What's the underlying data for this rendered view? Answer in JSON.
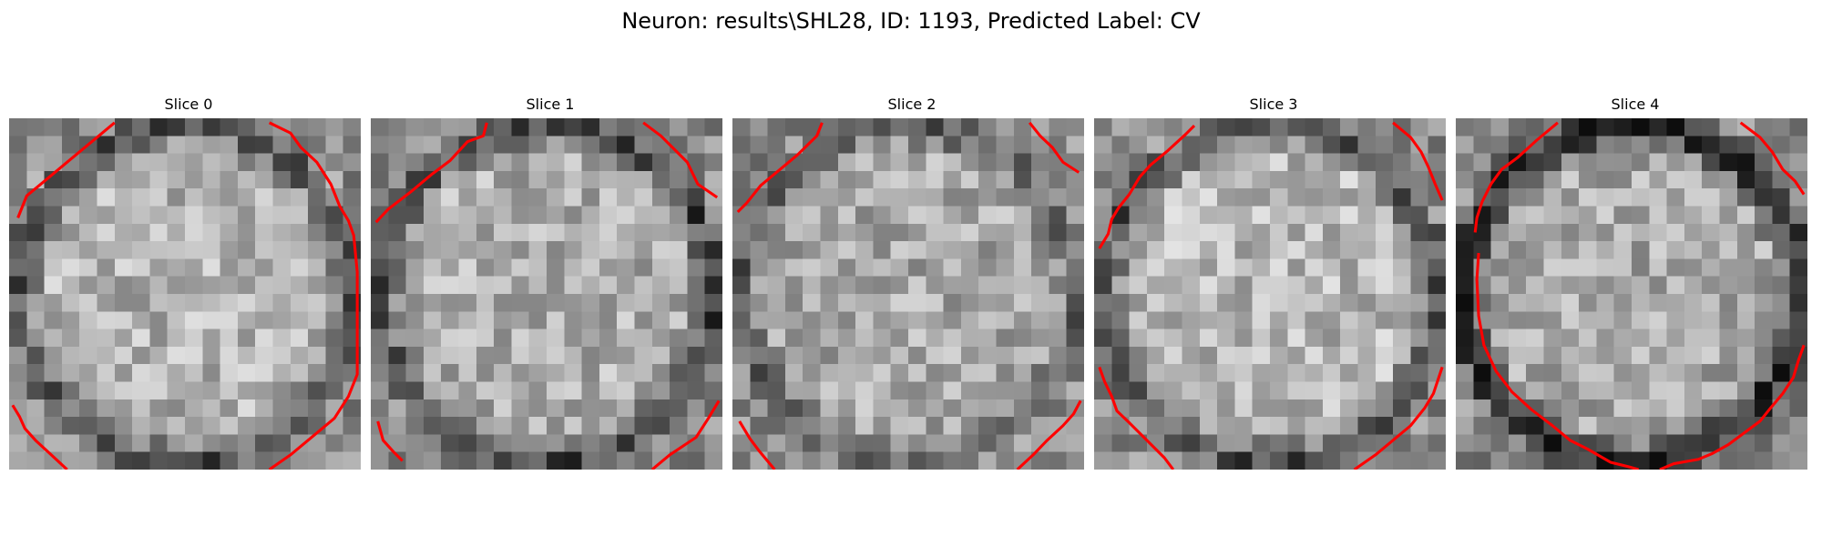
{
  "figure": {
    "title": "Neuron: results\\SHL28, ID: 1193, Predicted Label: CV"
  },
  "slices": [
    {
      "title": "Slice 0",
      "seed": 11,
      "brightness": 0.7,
      "ring": 0.4
    },
    {
      "title": "Slice 1",
      "seed": 23,
      "brightness": 0.68,
      "ring": 0.42
    },
    {
      "title": "Slice 2",
      "seed": 37,
      "brightness": 0.66,
      "ring": 0.3
    },
    {
      "title": "Slice 3",
      "seed": 51,
      "brightness": 0.72,
      "ring": 0.45
    },
    {
      "title": "Slice 4",
      "seed": 67,
      "brightness": 0.66,
      "ring": 0.55
    }
  ],
  "contour_color": "#ff0000"
}
